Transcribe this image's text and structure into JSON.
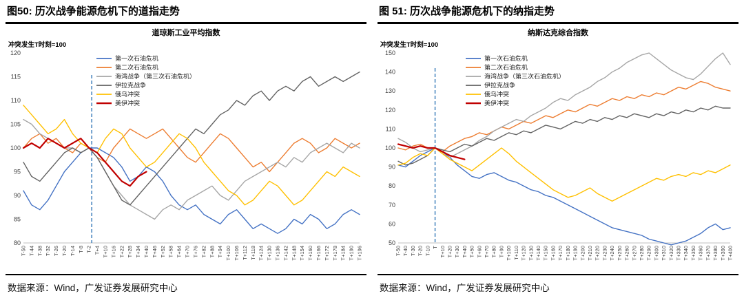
{
  "figures": [
    {
      "caption": "图50: 历次战争能源危机下的道指走势",
      "source": "数据来源：Wind，广发证券发展研究中心"
    },
    {
      "caption": "图 51: 历次战争能源危机下的纳指走势",
      "source": "数据来源：Wind，广发证券发展研究中心"
    }
  ],
  "chart_data": [
    {
      "type": "line",
      "title": "道琼斯工业平均指数",
      "note": "冲突发生T时刻=100",
      "ylim": [
        80,
        120
      ],
      "ytick": 5,
      "x_label_format": "T{+n}",
      "legend_position": "upper-left",
      "event_x": 0,
      "event_color": "#2E75B6",
      "x": [
        -50,
        -44,
        -38,
        -32,
        -26,
        -20,
        -14,
        -8,
        -2,
        4,
        10,
        16,
        22,
        28,
        34,
        40,
        46,
        52,
        58,
        64,
        70,
        76,
        82,
        88,
        94,
        100,
        106,
        112,
        118,
        124,
        130,
        136,
        142,
        148,
        154,
        160,
        166,
        172,
        178,
        184,
        190,
        196
      ],
      "series": [
        {
          "name": "第一次石油危机",
          "color": "#4472C4",
          "emphasis": false,
          "values": [
            91,
            88,
            87,
            89,
            92,
            95,
            97,
            99,
            100,
            100,
            99,
            98,
            96,
            93,
            94,
            96,
            95,
            93,
            90,
            88,
            87,
            88,
            86,
            85,
            84,
            86,
            87,
            85,
            83,
            84,
            83,
            82,
            83,
            85,
            84,
            86,
            85,
            83,
            84,
            86,
            87,
            86
          ]
        },
        {
          "name": "第二次石油危机",
          "color": "#ED7D31",
          "emphasis": false,
          "values": [
            100,
            102,
            103,
            101,
            102,
            100,
            99,
            101,
            100,
            98,
            97,
            100,
            102,
            104,
            103,
            102,
            103,
            104,
            102,
            100,
            98,
            97,
            99,
            101,
            103,
            102,
            100,
            98,
            96,
            97,
            95,
            97,
            99,
            101,
            102,
            101,
            99,
            100,
            102,
            101,
            100,
            101
          ]
        },
        {
          "name": "海湾战争（第三次石油危机）",
          "color": "#A6A6A6",
          "emphasis": false,
          "values": [
            106,
            105,
            103,
            102,
            101,
            100,
            100,
            99,
            100,
            98,
            95,
            92,
            90,
            88,
            87,
            86,
            85,
            87,
            88,
            87,
            89,
            90,
            91,
            92,
            90,
            89,
            91,
            93,
            94,
            95,
            96,
            97,
            96,
            98,
            97,
            99,
            100,
            101,
            100,
            99,
            101,
            100
          ]
        },
        {
          "name": "伊拉克战争",
          "color": "#636363",
          "emphasis": false,
          "values": [
            97,
            94,
            93,
            95,
            97,
            99,
            100,
            99,
            100,
            98,
            95,
            92,
            89,
            88,
            90,
            92,
            94,
            96,
            98,
            100,
            102,
            104,
            103,
            105,
            107,
            108,
            110,
            109,
            111,
            112,
            110,
            112,
            113,
            112,
            114,
            115,
            113,
            114,
            115,
            114,
            115,
            116
          ]
        },
        {
          "name": "俄乌冲突",
          "color": "#FFC000",
          "emphasis": false,
          "values": [
            109,
            107,
            105,
            103,
            104,
            106,
            103,
            101,
            100,
            99,
            102,
            104,
            103,
            100,
            98,
            96,
            97,
            99,
            101,
            103,
            102,
            100,
            97,
            95,
            93,
            91,
            90,
            88,
            89,
            91,
            93,
            92,
            90,
            88,
            89,
            91,
            93,
            95,
            94,
            96,
            95,
            94
          ]
        },
        {
          "name": "美伊冲突",
          "color": "#C00000",
          "emphasis": true,
          "values": [
            100,
            101,
            100,
            102,
            101,
            100,
            101,
            102,
            100,
            99,
            97,
            95,
            93,
            92,
            94,
            95,
            null,
            null,
            null,
            null,
            null,
            null,
            null,
            null,
            null,
            null,
            null,
            null,
            null,
            null,
            null,
            null,
            null,
            null,
            null,
            null,
            null,
            null,
            null,
            null,
            null,
            null
          ]
        }
      ]
    },
    {
      "type": "line",
      "title": "纳斯达克综合指数",
      "note": "冲突发生T时刻=100",
      "ylim": [
        50,
        150
      ],
      "ytick": 10,
      "x_label_format": "T{+n}",
      "legend_position": "upper-left",
      "event_x": 0,
      "event_color": "#2E75B6",
      "x": [
        -50,
        -40,
        -30,
        -20,
        -10,
        0,
        10,
        20,
        30,
        40,
        50,
        60,
        70,
        80,
        90,
        100,
        110,
        120,
        130,
        140,
        150,
        160,
        170,
        180,
        190,
        200,
        210,
        220,
        230,
        240,
        250,
        260,
        270,
        280,
        290,
        300,
        310,
        320,
        330,
        340,
        350,
        360,
        370,
        380,
        390,
        400
      ],
      "series": [
        {
          "name": "第一次石油危机",
          "color": "#4472C4",
          "emphasis": false,
          "values": [
            91,
            90,
            93,
            96,
            98,
            100,
            98,
            95,
            91,
            88,
            85,
            84,
            86,
            87,
            85,
            83,
            82,
            80,
            78,
            77,
            75,
            74,
            72,
            70,
            68,
            66,
            64,
            62,
            60,
            58,
            57,
            56,
            55,
            54,
            52,
            51,
            50,
            49,
            50,
            51,
            53,
            55,
            58,
            60,
            57,
            58
          ]
        },
        {
          "name": "第二次石油危机",
          "color": "#ED7D31",
          "emphasis": false,
          "values": [
            100,
            99,
            101,
            102,
            100,
            100,
            98,
            101,
            103,
            105,
            106,
            108,
            107,
            109,
            111,
            110,
            112,
            114,
            113,
            115,
            117,
            116,
            118,
            120,
            119,
            121,
            123,
            122,
            124,
            126,
            125,
            127,
            126,
            128,
            127,
            129,
            128,
            130,
            132,
            131,
            133,
            135,
            134,
            132,
            131,
            130
          ]
        },
        {
          "name": "海湾战争（第三次石油危机）",
          "color": "#A6A6A6",
          "emphasis": false,
          "values": [
            105,
            103,
            100,
            98,
            99,
            100,
            97,
            95,
            97,
            99,
            101,
            104,
            106,
            109,
            111,
            113,
            115,
            114,
            117,
            119,
            121,
            124,
            126,
            125,
            128,
            130,
            132,
            135,
            137,
            140,
            142,
            145,
            147,
            149,
            150,
            147,
            144,
            141,
            139,
            137,
            136,
            139,
            143,
            147,
            150,
            144
          ]
        },
        {
          "name": "伊拉克战争",
          "color": "#636363",
          "emphasis": false,
          "values": [
            93,
            91,
            92,
            94,
            96,
            100,
            99,
            98,
            100,
            102,
            101,
            103,
            105,
            104,
            106,
            108,
            107,
            109,
            108,
            110,
            112,
            111,
            110,
            112,
            114,
            113,
            115,
            114,
            116,
            115,
            117,
            116,
            118,
            117,
            116,
            118,
            117,
            119,
            118,
            120,
            119,
            121,
            120,
            122,
            121,
            121
          ]
        },
        {
          "name": "俄乌冲突",
          "color": "#FFC000",
          "emphasis": false,
          "values": [
            91,
            92,
            95,
            97,
            96,
            100,
            97,
            94,
            92,
            90,
            88,
            91,
            94,
            97,
            100,
            97,
            93,
            90,
            87,
            84,
            81,
            78,
            76,
            74,
            75,
            77,
            79,
            76,
            74,
            72,
            74,
            76,
            78,
            80,
            82,
            84,
            83,
            85,
            86,
            85,
            87,
            86,
            88,
            87,
            89,
            91
          ]
        },
        {
          "name": "美伊冲突",
          "color": "#C00000",
          "emphasis": true,
          "values": [
            102,
            101,
            100,
            101,
            100,
            100,
            98,
            96,
            95,
            94,
            null,
            null,
            null,
            null,
            null,
            null,
            null,
            null,
            null,
            null,
            null,
            null,
            null,
            null,
            null,
            null,
            null,
            null,
            null,
            null,
            null,
            null,
            null,
            null,
            null,
            null,
            null,
            null,
            null,
            null,
            null,
            null,
            null,
            null,
            null,
            null
          ]
        }
      ]
    }
  ]
}
